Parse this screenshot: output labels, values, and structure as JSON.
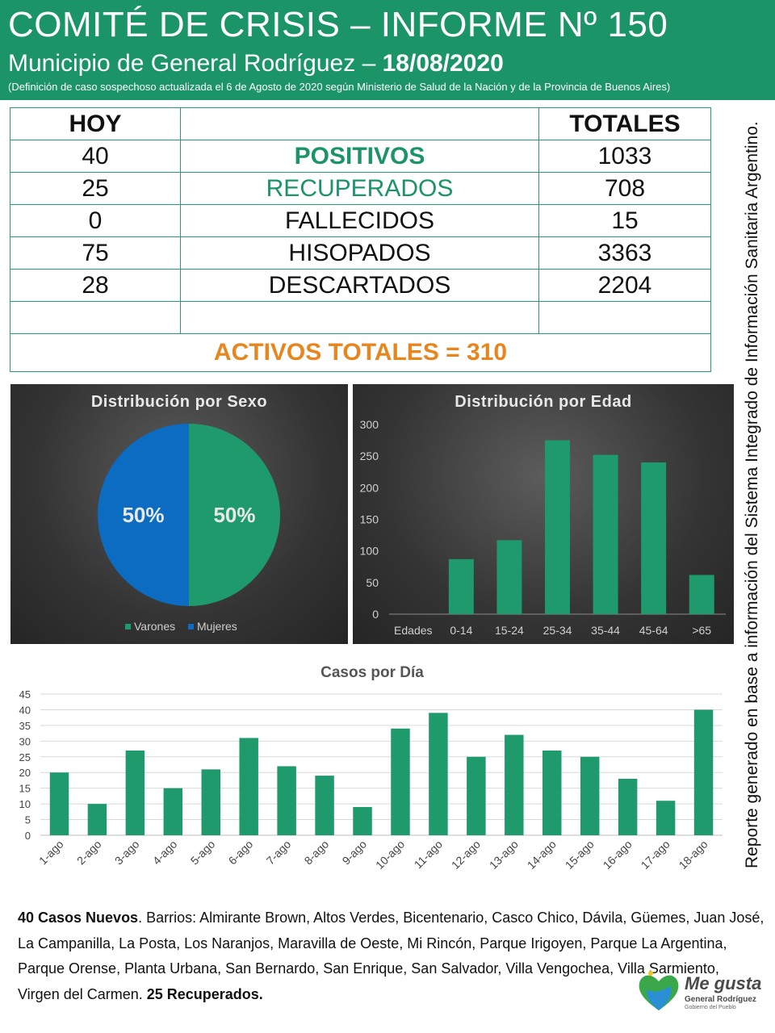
{
  "header": {
    "title": "COMITÉ DE CRISIS – INFORME Nº 150",
    "subtitle": "Municipio de General Rodríguez –",
    "date": "18/08/2020",
    "note": "(Definición de caso sospechoso actualizada el 6 de Agosto de 2020 según Ministerio de Salud de la Nación y de la Provincia de Buenos Aires)"
  },
  "table": {
    "col_hoy": "HOY",
    "col_totales": "TOTALES",
    "rows": [
      {
        "hoy": "40",
        "label": "POSITIVOS",
        "total": "1033"
      },
      {
        "hoy": "25",
        "label": "RECUPERADOS",
        "total": "708"
      },
      {
        "hoy": "0",
        "label": "FALLECIDOS",
        "total": "15"
      },
      {
        "hoy": "75",
        "label": "HISOPADOS",
        "total": "3363"
      },
      {
        "hoy": "28",
        "label": "DESCARTADOS",
        "total": "2204"
      }
    ],
    "activos": "ACTIVOS TOTALES = 310"
  },
  "colors": {
    "green": "#1b9467",
    "bar_green": "#1f9a6c",
    "blue": "#0b6cc1",
    "orange": "#e7861e"
  },
  "chart_data": [
    {
      "type": "pie",
      "title": "Distribución por Sexo",
      "labels": [
        "Varones",
        "Mujeres"
      ],
      "values": [
        50,
        50
      ],
      "data_labels": [
        "50%",
        "50%"
      ],
      "colors": [
        "#1f9a6c",
        "#0b6cc1"
      ],
      "legend": "bottom"
    },
    {
      "type": "bar",
      "title": "Distribución por Edad",
      "categories": [
        "Edades",
        "0-14",
        "15-24",
        "25-34",
        "35-44",
        "45-64",
        ">65"
      ],
      "values": [
        0,
        87,
        117,
        275,
        252,
        240,
        62
      ],
      "ylim": [
        0,
        300
      ],
      "yticks": [
        0,
        50,
        100,
        150,
        200,
        250,
        300
      ],
      "grid": false
    },
    {
      "type": "bar",
      "title": "Casos por Día",
      "categories": [
        "1-ago",
        "2-ago",
        "3-ago",
        "4-ago",
        "5-ago",
        "6-ago",
        "7-ago",
        "8-ago",
        "9-ago",
        "10-ago",
        "11-ago",
        "12-ago",
        "13-ago",
        "14-ago",
        "15-ago",
        "16-ago",
        "17-ago",
        "18-ago"
      ],
      "values": [
        20,
        10,
        27,
        15,
        21,
        31,
        22,
        19,
        9,
        34,
        39,
        25,
        32,
        27,
        25,
        18,
        11,
        40
      ],
      "ylim": [
        0,
        45
      ],
      "yticks": [
        0,
        5,
        10,
        15,
        20,
        25,
        30,
        35,
        40,
        45
      ],
      "grid": true
    }
  ],
  "side_text": "Reporte generado en base a información del Sistema Integrado de Información Sanitaria Argentino.",
  "footer": {
    "bold_start": "40 Casos Nuevos",
    "barrios": ". Barrios: Almirante Brown, Altos Verdes, Bicentenario, Casco Chico, Dávila, Güemes, Juan José, La Campanilla, La Posta, Los Naranjos, Maravilla de Oeste, Mi Rincón, Parque Irigoyen, Parque La Argentina, Parque Orense, Planta Urbana, San Bernardo, San Enrique, San Salvador, Villa Vengochea, Villa Sarmiento, Virgen del Carmen. ",
    "bold_end": "25 Recuperados."
  },
  "logo": {
    "line1": "Me gusta",
    "line2": "General Rodríguez",
    "line3": "Gobierno del Pueblo"
  }
}
